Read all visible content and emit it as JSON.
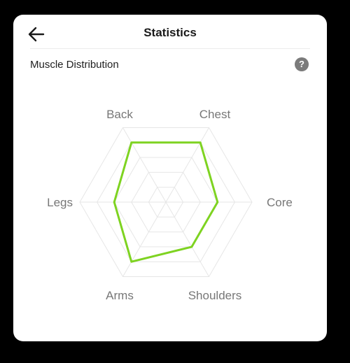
{
  "header": {
    "title": "Statistics",
    "back_icon": "arrow-left-icon"
  },
  "section": {
    "title": "Muscle Distribution",
    "help_label": "?",
    "help_icon": "question-mark-icon"
  },
  "colors": {
    "accent": "#7ed321",
    "grid": "#e6e6e6",
    "label": "#777777"
  },
  "chart_data": {
    "type": "radar",
    "axes": [
      "Back",
      "Chest",
      "Core",
      "Shoulders",
      "Arms",
      "Legs"
    ],
    "values": [
      0.8,
      0.8,
      0.6,
      0.6,
      0.8,
      0.6
    ],
    "max": 1,
    "grid_levels": 5,
    "grid": true,
    "legend": "none"
  }
}
